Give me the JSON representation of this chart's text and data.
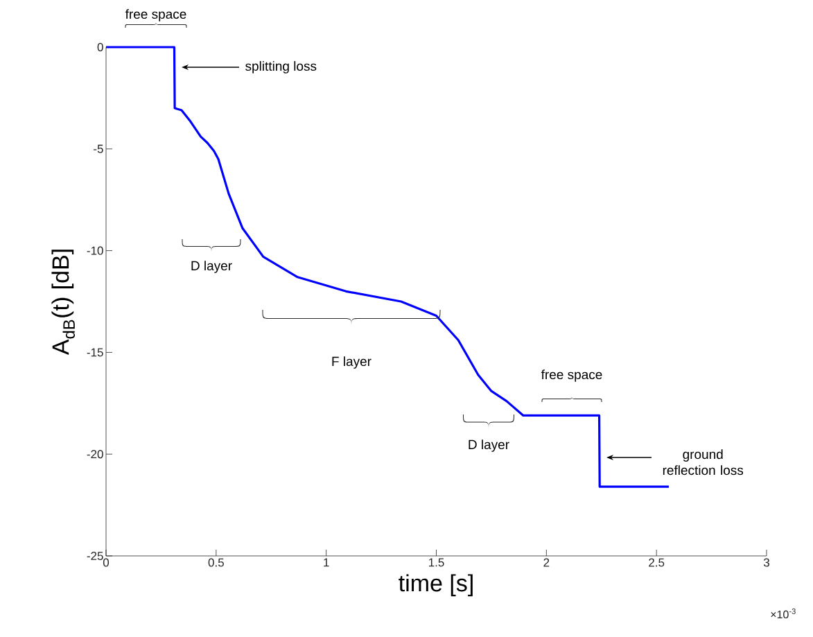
{
  "chart_data": {
    "type": "line",
    "xlabel": "time [s]",
    "ylabel": "A$_{dB}$(t) [dB]",
    "x": [
      0,
      0.31,
      0.312,
      0.343,
      0.38,
      0.43,
      0.46,
      0.49,
      0.51,
      0.557,
      0.62,
      0.714,
      0.87,
      1.09,
      1.34,
      1.5,
      1.6,
      1.69,
      1.75,
      1.82,
      1.895,
      2.24,
      2.242,
      2.556
    ],
    "values": [
      0,
      0,
      -3.0,
      -3.1,
      -3.6,
      -4.4,
      -4.7,
      -5.1,
      -5.5,
      -7.2,
      -8.9,
      -10.3,
      -11.3,
      -12.0,
      -12.5,
      -13.2,
      -14.4,
      -16.1,
      -16.9,
      -17.4,
      -18.1,
      -18.1,
      -21.6,
      -21.6
    ],
    "color": "#0000ff",
    "xlim": [
      0,
      3
    ],
    "ylim": [
      -25,
      0
    ],
    "xticks": [
      0,
      0.5,
      1,
      1.5,
      2,
      2.5,
      3
    ],
    "yticks": [
      -25,
      -20,
      -15,
      -10,
      -5,
      0
    ],
    "annotations": [
      "free space",
      "splitting loss",
      "D layer",
      "F layer",
      "D layer",
      "free space",
      "ground reflection loss",
      "×10$^{-3}$"
    ]
  }
}
